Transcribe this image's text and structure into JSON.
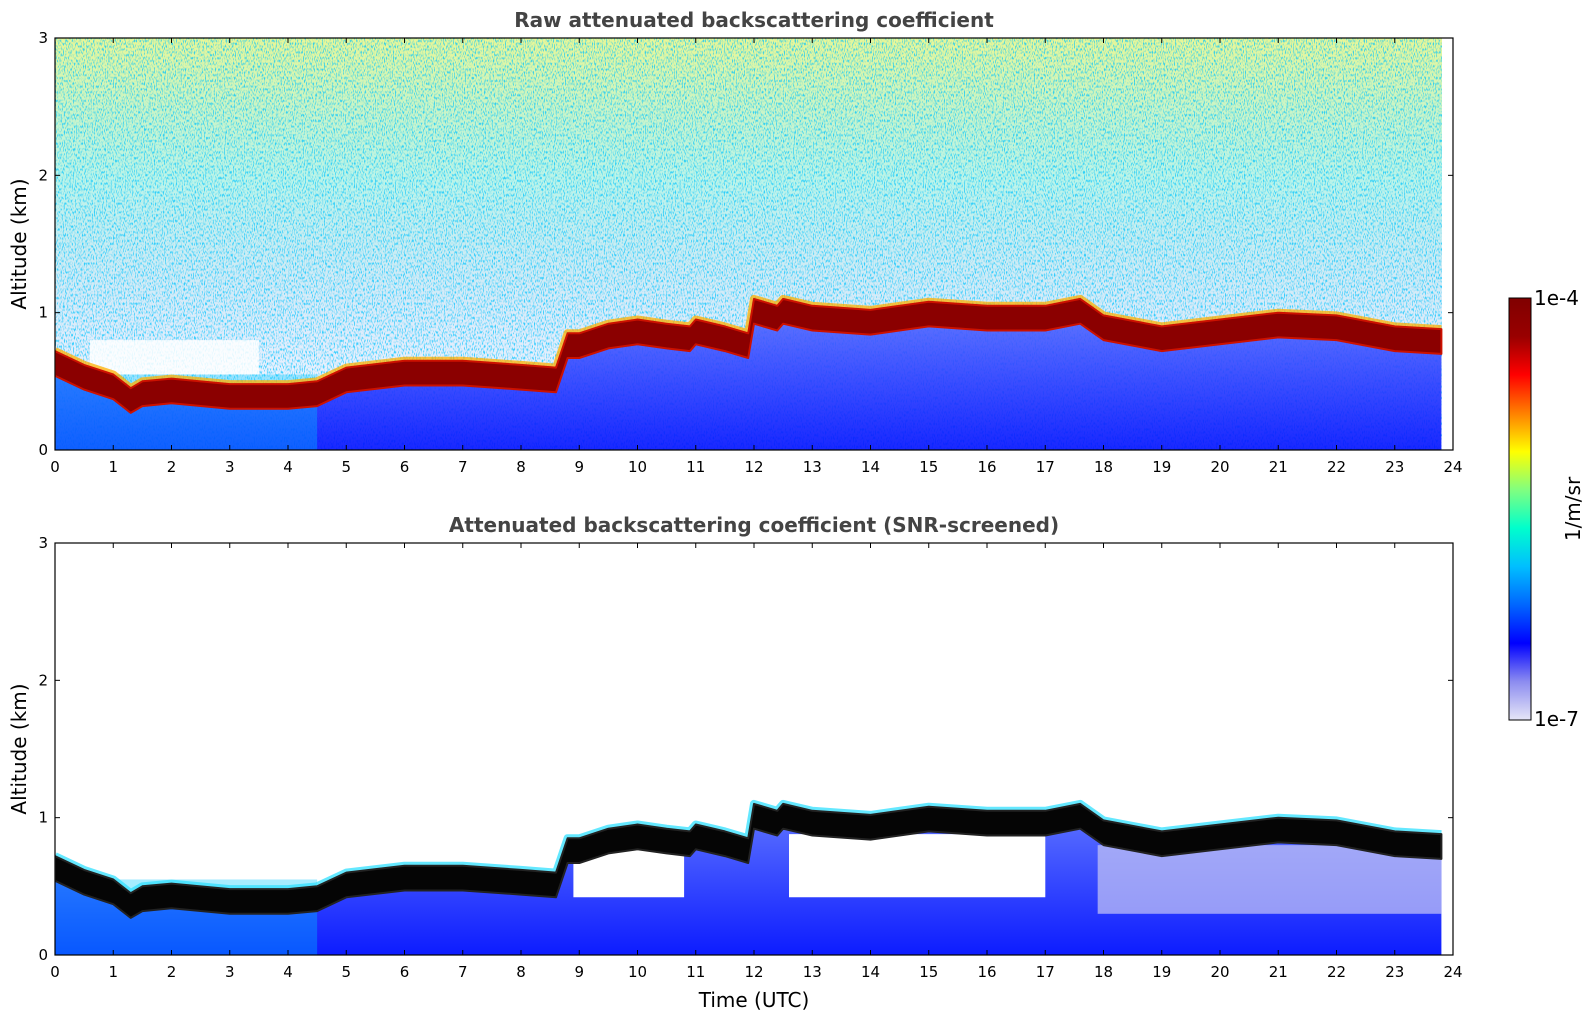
{
  "chart_data": [
    {
      "type": "heatmap",
      "title": "Raw attenuated backscattering coefficient",
      "xlabel": "",
      "ylabel": "Altitude (km)",
      "xlim": [
        0,
        24
      ],
      "ylim": [
        0,
        3
      ],
      "xticks": [
        "0",
        "1",
        "2",
        "3",
        "4",
        "5",
        "6",
        "7",
        "8",
        "9",
        "10",
        "11",
        "12",
        "13",
        "14",
        "15",
        "16",
        "17",
        "18",
        "19",
        "20",
        "21",
        "22",
        "23",
        "24"
      ],
      "yticks": [
        "0",
        "1",
        "2",
        "3"
      ],
      "layer_top_km": {
        "time_utc": [
          0,
          0.5,
          1,
          1.3,
          1.5,
          2,
          3,
          4,
          4.5,
          5,
          6,
          7,
          8,
          8.6,
          8.8,
          9,
          9.5,
          10,
          10.5,
          10.9,
          11,
          11.5,
          11.9,
          12,
          12.4,
          12.5,
          13,
          14,
          15,
          16,
          17,
          17.6,
          18,
          19,
          20,
          21,
          22,
          23,
          23.8
        ],
        "altitude_km": [
          0.72,
          0.62,
          0.55,
          0.45,
          0.5,
          0.52,
          0.48,
          0.48,
          0.5,
          0.6,
          0.65,
          0.65,
          0.62,
          0.6,
          0.85,
          0.85,
          0.92,
          0.95,
          0.92,
          0.9,
          0.95,
          0.9,
          0.85,
          1.1,
          1.05,
          1.1,
          1.05,
          1.02,
          1.08,
          1.05,
          1.05,
          1.1,
          0.98,
          0.9,
          0.95,
          1.0,
          0.98,
          0.9,
          0.88
        ]
      }
    },
    {
      "type": "heatmap",
      "title": "Attenuated backscattering coefficient (SNR-screened)",
      "xlabel": "Time (UTC)",
      "ylabel": "Altitude (km)",
      "xlim": [
        0,
        24
      ],
      "ylim": [
        0,
        3
      ],
      "xticks": [
        "0",
        "1",
        "2",
        "3",
        "4",
        "5",
        "6",
        "7",
        "8",
        "9",
        "10",
        "11",
        "12",
        "13",
        "14",
        "15",
        "16",
        "17",
        "18",
        "19",
        "20",
        "21",
        "22",
        "23",
        "24"
      ],
      "yticks": [
        "0",
        "1",
        "2",
        "3"
      ]
    }
  ],
  "colorbar": {
    "label": "1/m/sr",
    "max_label": "1e-4",
    "min_label": "1e-7",
    "colors": [
      "#e6e6f7",
      "#8c8cf0",
      "#0000ff",
      "#0066ff",
      "#00bfff",
      "#00ffcc",
      "#80ff80",
      "#ffff00",
      "#ff8000",
      "#ff0000",
      "#990000",
      "#800000"
    ]
  }
}
